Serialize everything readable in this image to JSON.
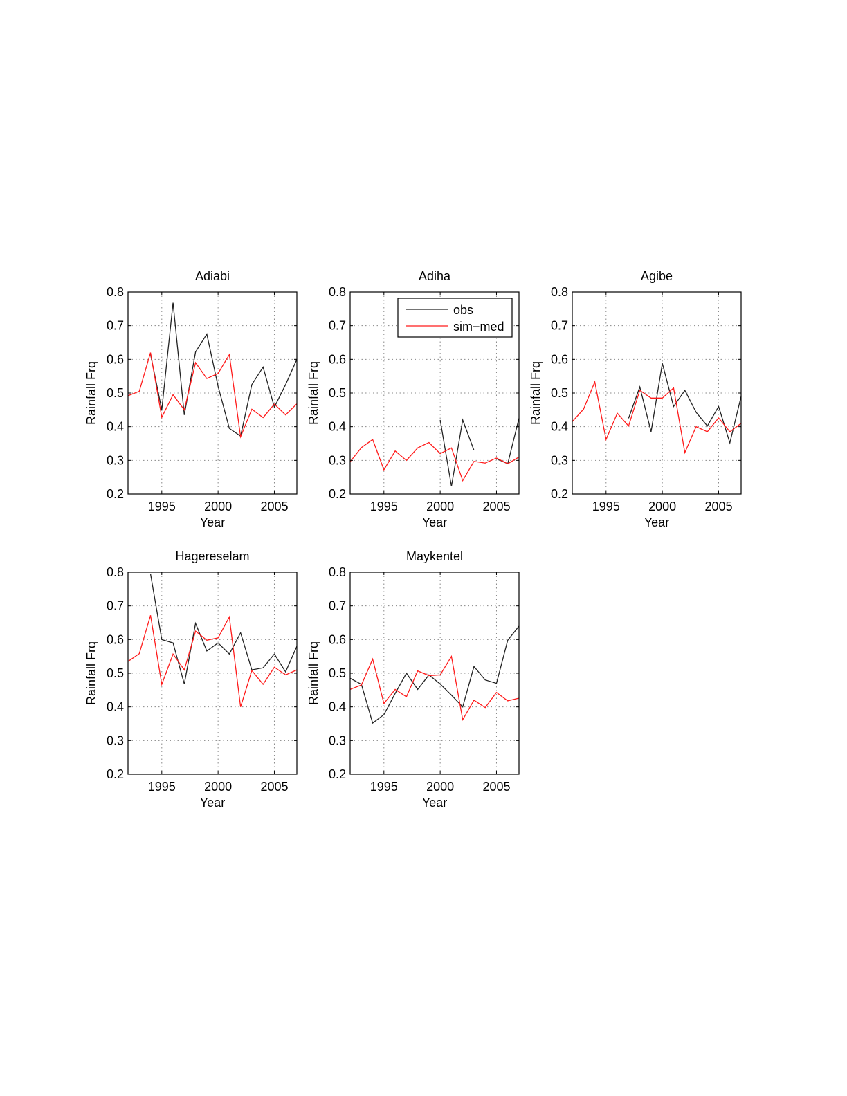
{
  "figure": {
    "legend": {
      "obs_label": "obs",
      "sim_label": "sim−med"
    },
    "colors": {
      "obs": "#222222",
      "sim": "#ff1a1a",
      "axis": "#000000",
      "grid": "#888888"
    }
  },
  "chart_data": [
    {
      "type": "line",
      "title": "Adiabi",
      "xlabel": "Year",
      "ylabel": "Rainfall Frq",
      "xlim": [
        1992,
        2007
      ],
      "ylim": [
        0.2,
        0.8
      ],
      "xticks": [
        1995,
        2000,
        2005
      ],
      "yticks": [
        0.2,
        0.3,
        0.4,
        0.5,
        0.6,
        0.7,
        0.8
      ],
      "grid": true,
      "legend": "none",
      "x": [
        1992,
        1993,
        1994,
        1995,
        1996,
        1997,
        1998,
        1999,
        2000,
        2001,
        2002,
        2003,
        2004,
        2005,
        2006,
        2007
      ],
      "series": [
        {
          "name": "obs",
          "values": [
            null,
            null,
            0.615,
            0.45,
            0.768,
            0.435,
            0.622,
            0.675,
            0.52,
            0.395,
            0.372,
            0.525,
            0.577,
            0.458,
            0.525,
            0.6
          ]
        },
        {
          "name": "sim−med",
          "values": [
            0.492,
            0.505,
            0.62,
            0.428,
            0.495,
            0.45,
            0.59,
            0.543,
            0.558,
            0.614,
            0.37,
            0.452,
            0.427,
            0.467,
            0.435,
            0.468
          ]
        }
      ]
    },
    {
      "type": "line",
      "title": "Adiha",
      "xlabel": "Year",
      "ylabel": "Rainfall Frq",
      "xlim": [
        1992,
        2007
      ],
      "ylim": [
        0.2,
        0.8
      ],
      "xticks": [
        1995,
        2000,
        2005
      ],
      "yticks": [
        0.2,
        0.3,
        0.4,
        0.5,
        0.6,
        0.7,
        0.8
      ],
      "grid": true,
      "legend": "top-right",
      "x": [
        1992,
        1993,
        1994,
        1995,
        1996,
        1997,
        1998,
        1999,
        2000,
        2001,
        2002,
        2003,
        2004,
        2005,
        2006,
        2007
      ],
      "series": [
        {
          "name": "obs",
          "values": [
            null,
            null,
            null,
            null,
            null,
            null,
            null,
            null,
            0.42,
            0.223,
            0.42,
            0.33,
            null,
            0.305,
            0.29,
            0.425
          ]
        },
        {
          "name": "sim−med",
          "values": [
            0.296,
            0.338,
            0.362,
            0.272,
            0.328,
            0.3,
            0.337,
            0.353,
            0.32,
            0.337,
            0.24,
            0.297,
            0.292,
            0.307,
            0.29,
            0.31
          ]
        }
      ]
    },
    {
      "type": "line",
      "title": "Agibe",
      "xlabel": "Year",
      "ylabel": "Rainfall Frq",
      "xlim": [
        1992,
        2007
      ],
      "ylim": [
        0.2,
        0.8
      ],
      "xticks": [
        1995,
        2000,
        2005
      ],
      "yticks": [
        0.2,
        0.3,
        0.4,
        0.5,
        0.6,
        0.7,
        0.8
      ],
      "grid": true,
      "legend": "none",
      "x": [
        1992,
        1993,
        1994,
        1995,
        1996,
        1997,
        1998,
        1999,
        2000,
        2001,
        2002,
        2003,
        2004,
        2005,
        2006,
        2007
      ],
      "series": [
        {
          "name": "obs",
          "values": [
            null,
            null,
            null,
            null,
            null,
            0.425,
            0.518,
            0.385,
            0.588,
            0.46,
            0.508,
            0.443,
            0.402,
            0.46,
            0.352,
            0.49
          ]
        },
        {
          "name": "sim−med",
          "values": [
            0.415,
            0.452,
            0.533,
            0.362,
            0.44,
            0.402,
            0.508,
            0.485,
            0.485,
            0.515,
            0.323,
            0.4,
            0.385,
            0.426,
            0.385,
            0.41
          ]
        }
      ]
    },
    {
      "type": "line",
      "title": "Hagereselam",
      "xlabel": "Year",
      "ylabel": "Rainfall Frq",
      "xlim": [
        1992,
        2007
      ],
      "ylim": [
        0.2,
        0.8
      ],
      "xticks": [
        1995,
        2000,
        2005
      ],
      "yticks": [
        0.2,
        0.3,
        0.4,
        0.5,
        0.6,
        0.7,
        0.8
      ],
      "grid": true,
      "legend": "none",
      "x": [
        1992,
        1993,
        1994,
        1995,
        1996,
        1997,
        1998,
        1999,
        2000,
        2001,
        2002,
        2003,
        2004,
        2005,
        2006,
        2007
      ],
      "series": [
        {
          "name": "obs",
          "values": [
            null,
            null,
            0.795,
            0.6,
            0.59,
            0.468,
            0.648,
            0.566,
            0.59,
            0.557,
            0.62,
            0.51,
            0.516,
            0.557,
            0.504,
            0.58
          ]
        },
        {
          "name": "sim−med",
          "values": [
            0.535,
            0.558,
            0.672,
            0.467,
            0.557,
            0.51,
            0.625,
            0.598,
            0.605,
            0.667,
            0.4,
            0.508,
            0.467,
            0.518,
            0.495,
            0.51
          ]
        }
      ]
    },
    {
      "type": "line",
      "title": "Maykentel",
      "xlabel": "Year",
      "ylabel": "Rainfall Frq",
      "xlim": [
        1992,
        2007
      ],
      "ylim": [
        0.2,
        0.8
      ],
      "xticks": [
        1995,
        2000,
        2005
      ],
      "yticks": [
        0.2,
        0.3,
        0.4,
        0.5,
        0.6,
        0.7,
        0.8
      ],
      "grid": true,
      "legend": "none",
      "x": [
        1992,
        1993,
        1994,
        1995,
        1996,
        1997,
        1998,
        1999,
        2000,
        2001,
        2002,
        2003,
        2004,
        2005,
        2006,
        2007
      ],
      "series": [
        {
          "name": "obs",
          "values": [
            0.485,
            0.467,
            0.352,
            0.377,
            0.44,
            0.5,
            0.452,
            0.495,
            0.468,
            0.435,
            0.4,
            0.52,
            0.48,
            0.47,
            0.598,
            0.64
          ]
        },
        {
          "name": "sim−med",
          "values": [
            0.452,
            0.465,
            0.542,
            0.41,
            0.452,
            0.43,
            0.507,
            0.493,
            0.495,
            0.55,
            0.362,
            0.42,
            0.398,
            0.443,
            0.418,
            0.426
          ]
        }
      ]
    }
  ]
}
